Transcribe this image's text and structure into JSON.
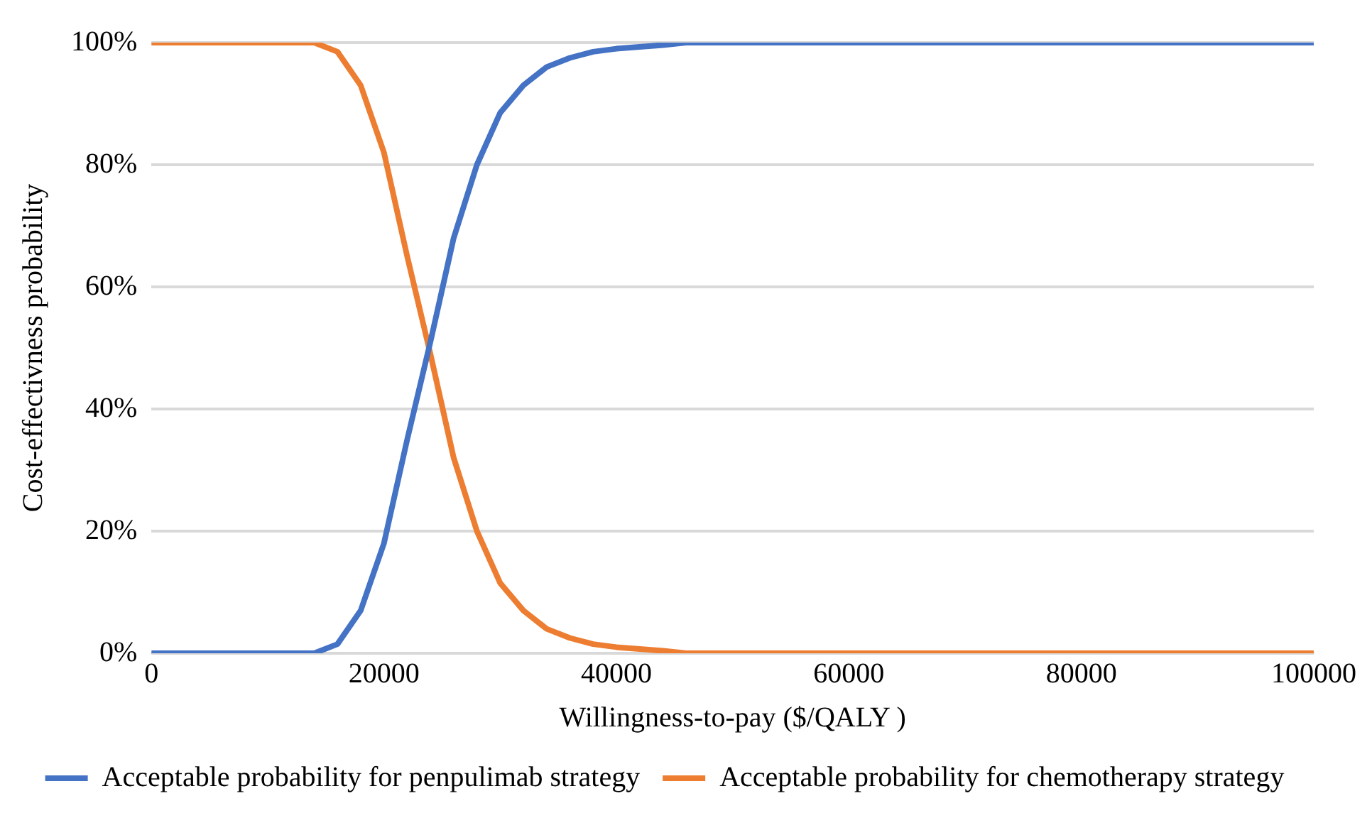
{
  "chart_data": {
    "type": "line",
    "xlabel": "Willingness-to-pay ($/QALY )",
    "ylabel": "Cost-effectivness probability",
    "x": [
      0,
      2000,
      4000,
      6000,
      8000,
      10000,
      12000,
      14000,
      16000,
      18000,
      20000,
      22000,
      24000,
      26000,
      28000,
      30000,
      32000,
      34000,
      36000,
      38000,
      40000,
      42000,
      44000,
      46000,
      60000,
      80000,
      100000
    ],
    "series": [
      {
        "name": "Acceptable probability for penpulimab strategy",
        "color": "#4472c4",
        "values": [
          0,
          0,
          0,
          0,
          0,
          0,
          0,
          0,
          1.5,
          7,
          18,
          35,
          51,
          68,
          80,
          88.5,
          93,
          96,
          97.5,
          98.5,
          99,
          99.3,
          99.6,
          100,
          100,
          100,
          100
        ]
      },
      {
        "name": "Acceptable probability for chemotherapy strategy",
        "color": "#ed7d31",
        "values": [
          100,
          100,
          100,
          100,
          100,
          100,
          100,
          100,
          98.5,
          93,
          82,
          65,
          49,
          32,
          20,
          11.5,
          7,
          4,
          2.5,
          1.5,
          1,
          0.7,
          0.4,
          0,
          0,
          0,
          0
        ]
      }
    ],
    "xlim": [
      0,
      100000
    ],
    "xticks": [
      0,
      20000,
      40000,
      60000,
      80000,
      100000
    ],
    "ylim": [
      0,
      100
    ],
    "yticks": [
      {
        "value": 0,
        "label": "0%"
      },
      {
        "value": 20,
        "label": "20%"
      },
      {
        "value": 40,
        "label": "40%"
      },
      {
        "value": 60,
        "label": "60%"
      },
      {
        "value": 80,
        "label": "80%"
      },
      {
        "value": 100,
        "label": "100%"
      }
    ],
    "grid": "y",
    "legend": "bottom",
    "marker": "none",
    "line_style": "solid"
  }
}
